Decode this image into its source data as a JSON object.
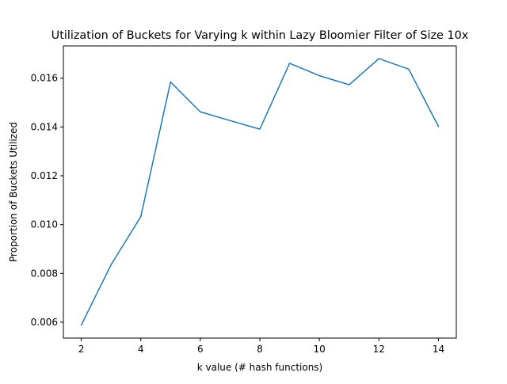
{
  "chart_data": {
    "type": "line",
    "title": "Utilization of Buckets for Varying k within Lazy Bloomier Filter of Size 10x",
    "xlabel": "k value (# hash functions)",
    "ylabel": "Proportion of Buckets Utilized",
    "xlim": [
      1.4,
      14.6
    ],
    "ylim": [
      0.00535,
      0.01732
    ],
    "xticks": [
      2,
      4,
      6,
      8,
      10,
      12,
      14
    ],
    "xtick_labels": [
      "2",
      "4",
      "6",
      "8",
      "10",
      "12",
      "14"
    ],
    "yticks": [
      0.006,
      0.008,
      0.01,
      0.012,
      0.014,
      0.016
    ],
    "ytick_labels": [
      "0.006",
      "0.008",
      "0.010",
      "0.012",
      "0.014",
      "0.016"
    ],
    "grid": false,
    "series": [
      {
        "color": "#1f77b4",
        "x": [
          2,
          3,
          4,
          5,
          6,
          7,
          8,
          9,
          10,
          11,
          12,
          13,
          14
        ],
        "y": [
          0.00588,
          0.00835,
          0.01032,
          0.01584,
          0.01462,
          0.01426,
          0.01391,
          0.01661,
          0.0161,
          0.01573,
          0.0168,
          0.01637,
          0.01402
        ]
      }
    ]
  }
}
